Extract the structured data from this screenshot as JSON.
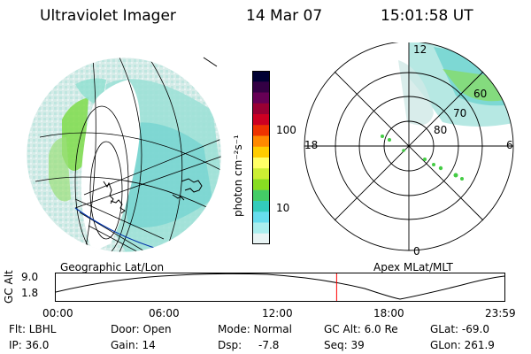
{
  "header": {
    "instrument": "Ultraviolet Imager",
    "date": "14 Mar 07",
    "time": "15:01:58 UT"
  },
  "colorbar": {
    "unit": "photon cm⁻²s⁻¹",
    "ticks": [
      "100",
      "10"
    ],
    "colors": [
      "#000033",
      "#330044",
      "#660055",
      "#990033",
      "#cc0022",
      "#ee3300",
      "#ff8800",
      "#ffcc00",
      "#ffff66",
      "#ccee33",
      "#88dd22",
      "#44cc66",
      "#33ccbb",
      "#66ddee",
      "#aaeeee",
      "#e8f4f4"
    ]
  },
  "polar_plot": {
    "mlt_labels": [
      "12",
      "18",
      "6",
      "0"
    ],
    "mlat_labels": [
      "60",
      "70",
      "80"
    ]
  },
  "map_labels": {
    "left": "Geographic Lat/Lon",
    "right": "Apex MLat/MLT"
  },
  "timeline": {
    "y_label": "GC Alt",
    "y_ticks": [
      "9.0",
      "1.8"
    ],
    "x_ticks": [
      "00:00",
      "06:00",
      "12:00",
      "18:00",
      "23:59"
    ],
    "current_time_fraction": 0.626,
    "marker_color": "#ff0000"
  },
  "info": {
    "flt": "Flt: LBHL",
    "ip": "IP: 36.0",
    "door": "Door: Open",
    "gain": "Gain: 14",
    "mode": "Mode: Normal",
    "dsp": "Dsp:",
    "dsp_val": "-7.8",
    "gc_alt": "GC Alt: 6.0 Re",
    "seq": "Seq: 39",
    "glat": "GLat: -69.0",
    "glon": "GLon: 261.9"
  }
}
